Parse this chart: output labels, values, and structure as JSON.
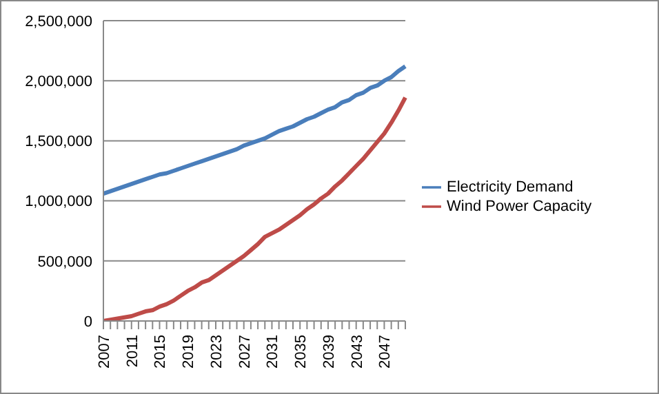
{
  "chart_data": {
    "type": "line",
    "categories": [
      "2007",
      null,
      null,
      null,
      "2011",
      null,
      null,
      null,
      "2015",
      null,
      null,
      null,
      "2019",
      null,
      null,
      null,
      "2023",
      null,
      null,
      null,
      "2027",
      null,
      null,
      null,
      "2031",
      null,
      null,
      null,
      "2035",
      null,
      null,
      null,
      "2039",
      null,
      null,
      null,
      "2043",
      null,
      null,
      null,
      "2047",
      null,
      null,
      null
    ],
    "series": [
      {
        "name": "Electricity Demand",
        "color": "#4a7ebb",
        "values": [
          1060000,
          1080000,
          1100000,
          1120000,
          1140000,
          1160000,
          1180000,
          1200000,
          1220000,
          1230000,
          1250000,
          1270000,
          1290000,
          1310000,
          1330000,
          1350000,
          1370000,
          1390000,
          1410000,
          1430000,
          1460000,
          1480000,
          1500000,
          1520000,
          1550000,
          1580000,
          1600000,
          1620000,
          1650000,
          1680000,
          1700000,
          1730000,
          1760000,
          1780000,
          1820000,
          1840000,
          1880000,
          1900000,
          1940000,
          1960000,
          2000000,
          2030000,
          2080000,
          2120000
        ]
      },
      {
        "name": "Wind Power Capacity",
        "color": "#be4b48",
        "values": [
          0,
          10000,
          20000,
          30000,
          40000,
          60000,
          80000,
          90000,
          120000,
          140000,
          170000,
          210000,
          250000,
          280000,
          320000,
          340000,
          380000,
          420000,
          460000,
          500000,
          540000,
          590000,
          640000,
          700000,
          730000,
          760000,
          800000,
          840000,
          880000,
          930000,
          970000,
          1020000,
          1060000,
          1120000,
          1170000,
          1230000,
          1290000,
          1350000,
          1420000,
          1490000,
          1560000,
          1650000,
          1750000,
          1860000
        ]
      }
    ],
    "ylim": [
      0,
      2500000
    ],
    "yticks": [
      0,
      {
        "value": 500000,
        "label": "500,000"
      },
      {
        "value": 1000000,
        "label": "1,000,000"
      },
      {
        "value": 1500000,
        "label": "1,500,000"
      },
      {
        "value": 2000000,
        "label": "2,000,000"
      },
      {
        "value": 2500000,
        "label": "2,500,000"
      }
    ],
    "grid": "y",
    "legend": "right",
    "marker": "none",
    "line_style": "solid"
  }
}
